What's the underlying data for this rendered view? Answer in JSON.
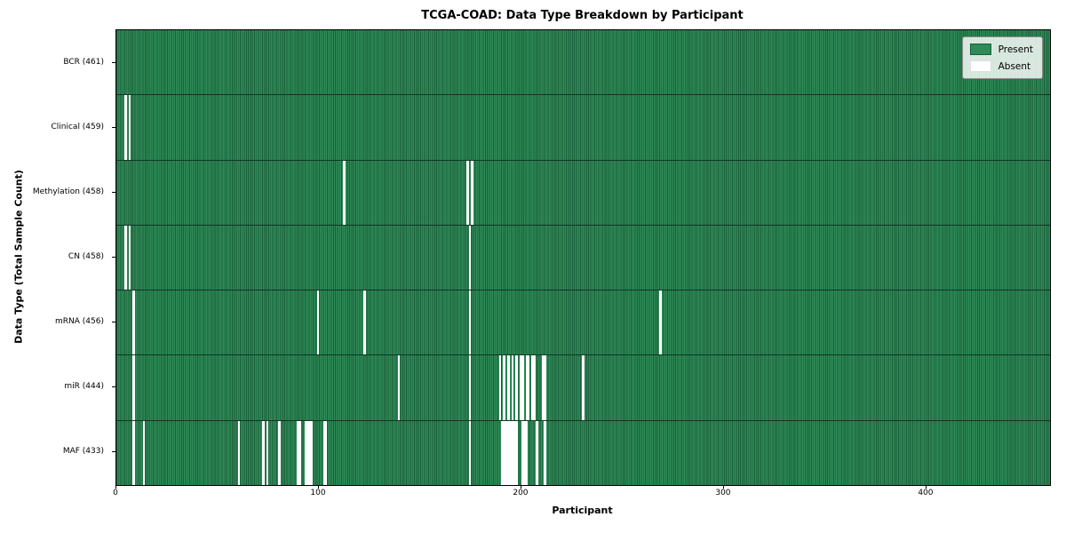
{
  "title": "TCGA-COAD: Data Type Breakdown by Participant",
  "xlabel": "Participant",
  "ylabel": "Data Type (Total Sample Count)",
  "legend": {
    "present_label": "Present",
    "absent_label": "Absent"
  },
  "colors": {
    "present_fill": "#2e8b57",
    "present_edge": "#1b5e3a",
    "absent_fill": "#ffffff",
    "row_divider": "#123524",
    "plot_border": "#000000"
  },
  "chart_data": {
    "type": "heatmap",
    "title": "TCGA-COAD: Data Type Breakdown by Participant",
    "xlabel": "Participant",
    "ylabel": "Data Type (Total Sample Count)",
    "legend_entries": [
      "Present",
      "Absent"
    ],
    "legend_position": "upper right",
    "n_participants": 461,
    "x_range": [
      0,
      461
    ],
    "x_ticks": [
      0,
      100,
      200,
      300,
      400
    ],
    "cell_values": "1 = Present (green), 0 = Absent (white)",
    "rows": [
      {
        "name": "BCR",
        "label": "BCR (461)",
        "present_count": 461,
        "absent_participants": []
      },
      {
        "name": "Clinical",
        "label": "Clinical (459)",
        "present_count": 459,
        "absent_participants": [
          4,
          6
        ]
      },
      {
        "name": "Methylation",
        "label": "Methylation (458)",
        "present_count": 458,
        "absent_participants": [
          112,
          173,
          175
        ]
      },
      {
        "name": "CN",
        "label": "CN (458)",
        "present_count": 458,
        "absent_participants": [
          4,
          6,
          174
        ]
      },
      {
        "name": "mRNA",
        "label": "mRNA (456)",
        "present_count": 456,
        "absent_participants": [
          8,
          99,
          122,
          174,
          268
        ]
      },
      {
        "name": "miR",
        "label": "miR (444)",
        "present_count": 444,
        "absent_participants": [
          8,
          139,
          174,
          189,
          191,
          193,
          195,
          197,
          199,
          200,
          202,
          203,
          205,
          206,
          210,
          211,
          230
        ]
      },
      {
        "name": "MAF",
        "label": "MAF (433)",
        "present_count": 433,
        "absent_participants": [
          8,
          13,
          60,
          72,
          74,
          80,
          89,
          90,
          93,
          94,
          95,
          96,
          102,
          103,
          174,
          190,
          191,
          192,
          193,
          194,
          195,
          196,
          197,
          200,
          201,
          202,
          207,
          211
        ]
      }
    ]
  }
}
